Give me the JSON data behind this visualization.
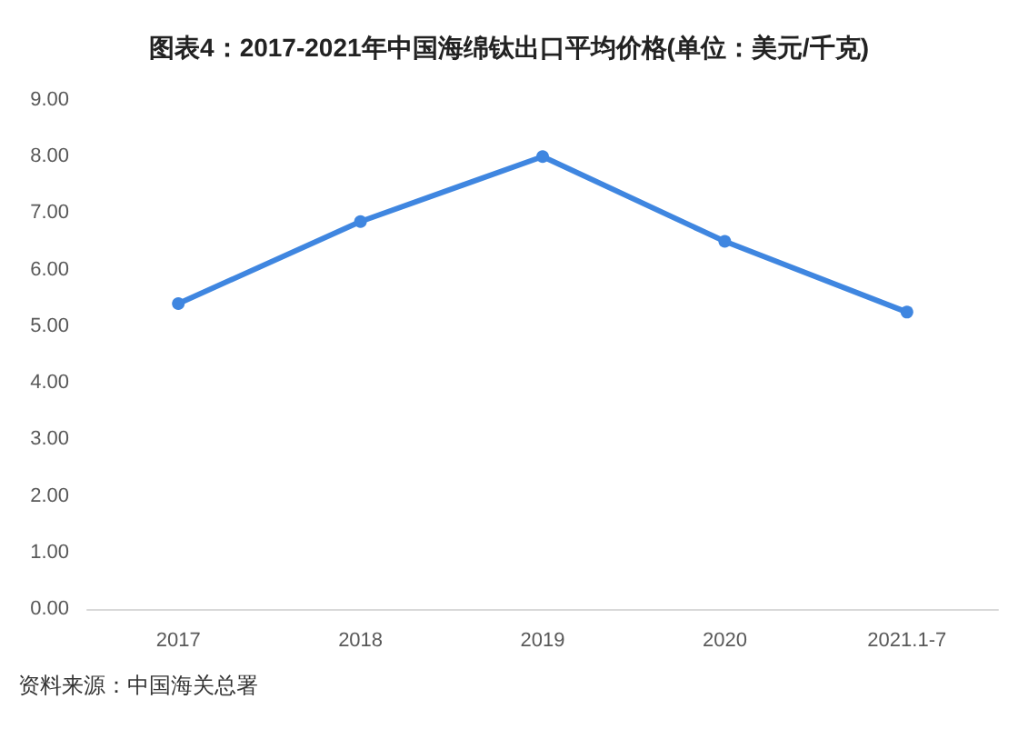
{
  "chart_data": {
    "type": "line",
    "title": "图表4：2017-2021年中国海绵钛出口平均价格(单位：美元/千克)",
    "categories": [
      "2017",
      "2018",
      "2019",
      "2020",
      "2021.1-7"
    ],
    "series": [
      {
        "color": "#3f86e0",
        "values": [
          5.4,
          6.85,
          8.0,
          6.5,
          5.25
        ]
      }
    ],
    "ylim": [
      0,
      9
    ],
    "yticks": [
      {
        "value": 0,
        "label": "0.00"
      },
      {
        "value": 1,
        "label": "1.00"
      },
      {
        "value": 2,
        "label": "2.00"
      },
      {
        "value": 3,
        "label": "3.00"
      },
      {
        "value": 4,
        "label": "4.00"
      },
      {
        "value": 5,
        "label": "5.00"
      },
      {
        "value": 6,
        "label": "6.00"
      },
      {
        "value": 7,
        "label": "7.00"
      },
      {
        "value": 8,
        "label": "8.00"
      },
      {
        "value": 9,
        "label": "9.00"
      }
    ],
    "grid": false,
    "marker": "circle",
    "line_style": "solid",
    "annotations": [
      "资料来源：中国海关总署"
    ]
  }
}
